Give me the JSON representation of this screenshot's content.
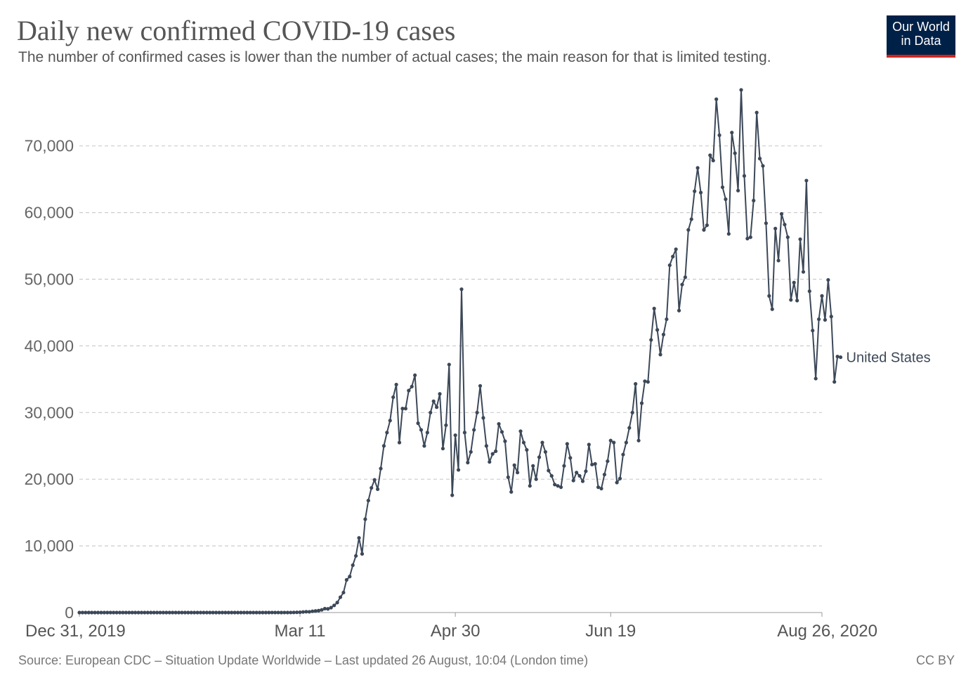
{
  "header": {
    "title": "Daily new confirmed COVID-19 cases",
    "subtitle": "The number of confirmed cases is lower than the number of actual cases; the main reason for that is limited testing."
  },
  "logo": {
    "line1": "Our World",
    "line2": "in Data"
  },
  "footer": {
    "source": "Source: European CDC – Situation Update Worldwide – Last updated 26 August, 10:04 (London time)",
    "license": "CC BY"
  },
  "colors": {
    "series": "#3c4858",
    "grid": "#cccccc",
    "logo_bg": "#002147",
    "logo_accent": "#ce261e"
  },
  "chart_data": {
    "type": "line",
    "title": "Daily new confirmed COVID-19 cases",
    "xlabel": "",
    "ylabel": "",
    "ylim": [
      0,
      78000
    ],
    "y_ticks": [
      {
        "value": 0,
        "label": "0"
      },
      {
        "value": 10000,
        "label": "10,000"
      },
      {
        "value": 20000,
        "label": "20,000"
      },
      {
        "value": 30000,
        "label": "30,000"
      },
      {
        "value": 40000,
        "label": "40,000"
      },
      {
        "value": 50000,
        "label": "50,000"
      },
      {
        "value": 60000,
        "label": "60,000"
      },
      {
        "value": 70000,
        "label": "70,000"
      }
    ],
    "x_ticks": [
      {
        "day": 0,
        "label": "Dec 31, 2019"
      },
      {
        "day": 71,
        "label": "Mar 11"
      },
      {
        "day": 121,
        "label": "Apr 30"
      },
      {
        "day": 171,
        "label": "Jun 19"
      },
      {
        "day": 239,
        "label": "Aug 26, 2020"
      }
    ],
    "x_unit": "days since Dec 31, 2019",
    "series": [
      {
        "name": "United States",
        "start_date": "Dec 31, 2019",
        "values": [
          0,
          0,
          0,
          0,
          0,
          0,
          0,
          0,
          0,
          0,
          0,
          0,
          0,
          0,
          0,
          0,
          0,
          0,
          0,
          0,
          0,
          1,
          0,
          0,
          0,
          2,
          0,
          0,
          0,
          0,
          1,
          1,
          0,
          1,
          1,
          0,
          0,
          1,
          0,
          0,
          0,
          0,
          0,
          1,
          0,
          0,
          0,
          0,
          0,
          0,
          0,
          0,
          0,
          0,
          0,
          0,
          0,
          0,
          0,
          0,
          0,
          0,
          8,
          3,
          5,
          0,
          7,
          3,
          4,
          19,
          35,
          46,
          84,
          127,
          113,
          190,
          236,
          289,
          400,
          585,
          551,
          739,
          1071,
          1500,
          2300,
          3000,
          4900,
          5400,
          7100,
          8500,
          11200,
          8800,
          14000,
          16800,
          18700,
          19900,
          18500,
          21600,
          25000,
          27000,
          28800,
          32300,
          34200,
          25500,
          30600,
          30600,
          33300,
          33900,
          35600,
          28400,
          27400,
          25000,
          27000,
          30000,
          31700,
          30800,
          32800,
          24600,
          28100,
          37200,
          17600,
          26600,
          21400,
          48500,
          27000,
          22500,
          24100,
          27400,
          30000,
          34000,
          29200,
          25000,
          22600,
          23800,
          24200,
          28300,
          27100,
          25700,
          20300,
          18100,
          22100,
          21000,
          27200,
          25500,
          24400,
          19000,
          22000,
          20000,
          23300,
          25500,
          24100,
          21300,
          20500,
          19200,
          19000,
          18800,
          22000,
          25300,
          23200,
          19800,
          21000,
          20500,
          19700,
          21200,
          25200,
          22200,
          22300,
          18800,
          18600,
          20700,
          22700,
          25800,
          25500,
          19500,
          20100,
          23700,
          25500,
          27700,
          30000,
          34300,
          25800,
          31400,
          34700,
          34600,
          40900,
          45600,
          42400,
          38700,
          41700,
          44000,
          52100,
          53400,
          54500,
          45300,
          49200,
          50300,
          57400,
          59000,
          63200,
          66700,
          63000,
          57400,
          58100,
          68600,
          67800,
          77000,
          71600,
          63800,
          62000,
          56800,
          72000,
          68900,
          63300,
          78400,
          65500,
          56100,
          56300,
          61800,
          75000,
          68100,
          67000,
          58400,
          47500,
          45500,
          57600,
          52800,
          59800,
          58200,
          56300,
          46900,
          49500,
          46800,
          56000,
          51100,
          64800,
          48200,
          42300,
          35100,
          44000,
          47500,
          43900,
          49900,
          44400,
          34600,
          38400,
          38300
        ]
      }
    ]
  }
}
